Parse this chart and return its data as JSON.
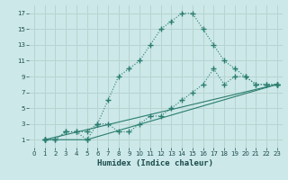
{
  "xlabel": "Humidex (Indice chaleur)",
  "bg_color": "#cce8e8",
  "grid_color": "#b8d4d0",
  "line_color": "#2a7d6e",
  "xlim": [
    -0.5,
    23.5
  ],
  "ylim": [
    0,
    18
  ],
  "xticks": [
    0,
    1,
    2,
    3,
    4,
    5,
    6,
    7,
    8,
    9,
    10,
    11,
    12,
    13,
    14,
    15,
    16,
    17,
    18,
    19,
    20,
    21,
    22,
    23
  ],
  "ytick_vals": [
    1,
    3,
    5,
    7,
    9,
    11,
    13,
    15,
    17
  ],
  "line1_x": [
    1,
    2,
    3,
    4,
    5,
    6,
    7,
    8,
    9,
    10,
    11,
    12,
    13,
    14,
    15,
    16,
    17,
    18,
    19,
    20,
    21,
    22,
    23
  ],
  "line1_y": [
    1,
    1,
    2,
    2,
    2,
    3,
    6,
    9,
    10,
    11,
    13,
    15,
    16,
    17,
    17,
    15,
    13,
    11,
    10,
    9,
    8,
    8,
    8
  ],
  "line2_x": [
    1,
    2,
    3,
    4,
    5,
    6,
    7,
    8,
    9,
    10,
    11,
    12,
    13,
    14,
    15,
    16,
    17,
    18,
    19,
    20,
    21,
    22,
    23
  ],
  "line2_y": [
    1,
    1,
    2,
    2,
    1,
    3,
    3,
    2,
    2,
    3,
    4,
    4,
    5,
    6,
    7,
    8,
    10,
    8,
    9,
    9,
    8,
    8,
    8
  ],
  "line3_x": [
    1,
    23
  ],
  "line3_y": [
    1,
    8
  ],
  "line4_x": [
    1,
    5,
    23
  ],
  "line4_y": [
    1,
    1,
    8
  ]
}
